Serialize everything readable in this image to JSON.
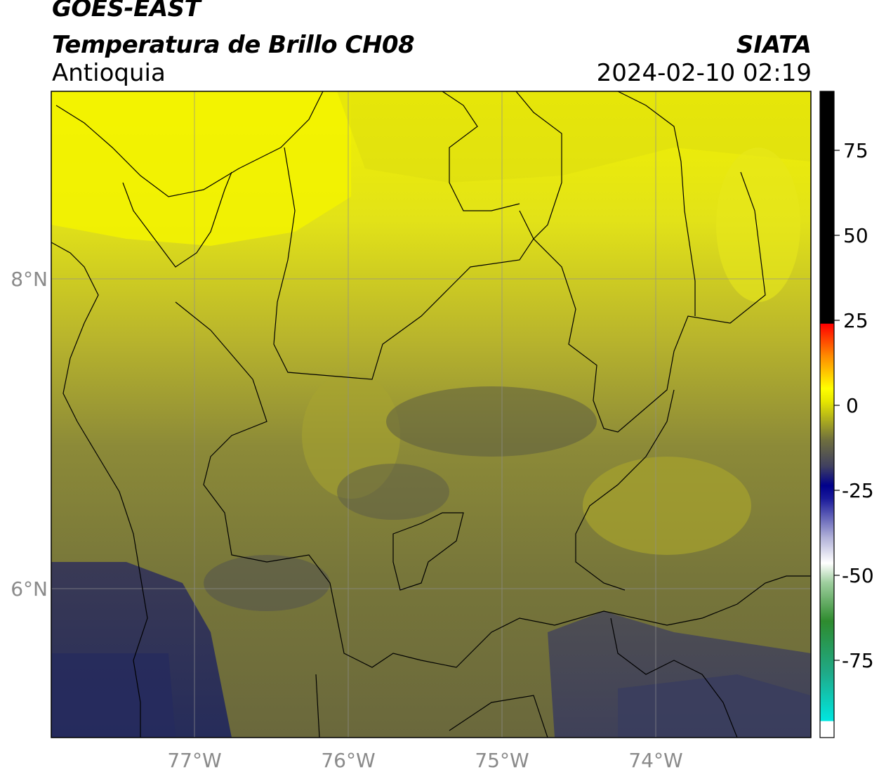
{
  "header": {
    "satellite": "GOES-EAST",
    "product": "Temperatura de Brillo CH08",
    "region": "Antioquia",
    "organization": "SIATA",
    "datetime": "2024-02-10 02:19"
  },
  "map": {
    "lon_labels": [
      "77°W",
      "76°W",
      "75°W",
      "74°W"
    ],
    "lat_labels": [
      "8°N",
      "6°N"
    ],
    "gridlines": true
  },
  "colorbar": {
    "tick_labels": [
      "75",
      "50",
      "25",
      "0",
      "-25",
      "-50",
      "-75"
    ],
    "colors": {
      "cold_bottom": "#ffffff",
      "cyan": "#00e6e0",
      "green": "#2e8b2e",
      "white": "#ffffff",
      "blue": "#00008b",
      "olive": "#6e6e3e",
      "yellow": "#ffff00",
      "orange": "#ff8c00",
      "red": "#ff0000",
      "black": "#000000"
    }
  }
}
